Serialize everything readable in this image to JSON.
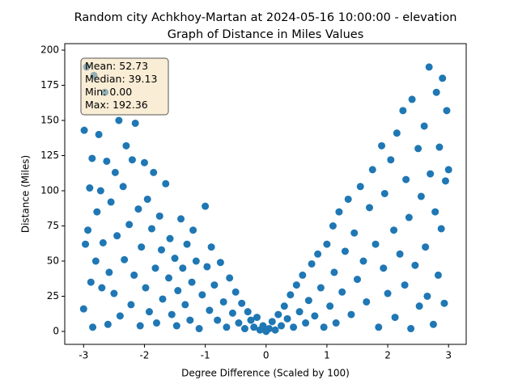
{
  "chart_data": {
    "type": "scatter",
    "title": "Random city Achkhoy-Martan at 2024-05-16 10:00:00  - elevation",
    "subtitle": "Graph of Distance in Miles Values",
    "x_label": "Degree Difference (Scaled by 100)",
    "y_label": "Distance (Miles)",
    "annotation": [
      "Mean: 52.73",
      "Median: 39.13",
      "Min: 0.00",
      "Max: 192.36"
    ],
    "xlim": [
      -3.31,
      3.29
    ],
    "ylim": [
      -9.2,
      204.6
    ],
    "xticks": [
      -3,
      -2,
      -1,
      0,
      1,
      2,
      3
    ],
    "yticks": [
      0,
      25,
      50,
      75,
      100,
      125,
      150,
      175,
      200
    ],
    "series": [
      {
        "color": "#1f77b4",
        "x": [
          -3,
          -2.99,
          -2.97,
          -2.95,
          -2.93,
          -2.9,
          -2.88,
          -2.86,
          -2.85,
          -2.83,
          -2.8,
          -2.78,
          -2.75,
          -2.72,
          -2.7,
          -2.68,
          -2.65,
          -2.62,
          -2.6,
          -2.58,
          -2.55,
          -2.5,
          -2.48,
          -2.45,
          -2.42,
          -2.4,
          -2.35,
          -2.33,
          -2.3,
          -2.25,
          -2.22,
          -2.2,
          -2.17,
          -2.15,
          -2.1,
          -2.07,
          -2.05,
          -2.0,
          -1.98,
          -1.95,
          -1.92,
          -1.88,
          -1.85,
          -1.82,
          -1.8,
          -1.75,
          -1.72,
          -1.7,
          -1.65,
          -1.6,
          -1.58,
          -1.55,
          -1.5,
          -1.47,
          -1.45,
          -1.4,
          -1.37,
          -1.33,
          -1.3,
          -1.25,
          -1.22,
          -1.2,
          -1.15,
          -1.1,
          -1.05,
          -1.0,
          -0.97,
          -0.93,
          -0.9,
          -0.85,
          -0.8,
          -0.75,
          -0.7,
          -0.65,
          -0.6,
          -0.55,
          -0.5,
          -0.45,
          -0.4,
          -0.35,
          -0.3,
          -0.25,
          -0.2,
          -0.15,
          -0.1,
          -0.05,
          0,
          0.05,
          0.1,
          0.15,
          0.2,
          0.25,
          0.3,
          0.35,
          0.4,
          0.45,
          0.5,
          0.55,
          0.6,
          0.65,
          0.7,
          0.75,
          0.8,
          0.85,
          0.9,
          0.95,
          1.0,
          1.05,
          1.1,
          1.12,
          1.15,
          1.2,
          1.25,
          1.3,
          1.35,
          1.4,
          1.45,
          1.5,
          1.55,
          1.6,
          1.65,
          1.7,
          1.75,
          1.8,
          1.85,
          1.9,
          1.93,
          1.95,
          2.0,
          2.05,
          2.1,
          2.12,
          2.15,
          2.2,
          2.25,
          2.28,
          2.3,
          2.35,
          2.38,
          2.4,
          2.45,
          2.5,
          2.52,
          2.55,
          2.6,
          2.62,
          2.65,
          2.68,
          2.7,
          2.75,
          2.78,
          2.8,
          2.83,
          2.85,
          2.88,
          2.9,
          2.93,
          2.95,
          2.97,
          3.0
        ],
        "values": [
          16,
          143,
          62,
          188,
          72,
          102,
          35,
          123,
          3,
          182,
          50,
          85,
          140,
          100,
          31,
          63,
          170,
          121,
          5,
          42,
          92,
          27,
          113,
          68,
          150,
          11,
          103,
          51,
          132,
          76,
          19,
          122,
          40,
          148,
          87,
          4,
          60,
          120,
          31,
          94,
          14,
          73,
          113,
          45,
          6,
          82,
          58,
          23,
          105,
          38,
          66,
          12,
          52,
          4,
          29,
          80,
          45,
          19,
          62,
          8,
          35,
          72,
          50,
          2,
          26,
          89,
          46,
          15,
          60,
          33,
          8,
          49,
          21,
          3,
          38,
          13,
          28,
          6,
          20,
          2,
          14,
          8,
          3,
          10,
          1,
          4,
          0,
          2,
          7,
          1,
          12,
          4,
          18,
          9,
          26,
          3,
          33,
          14,
          40,
          6,
          22,
          48,
          11,
          55,
          31,
          3,
          62,
          18,
          75,
          42,
          6,
          85,
          28,
          57,
          94,
          12,
          70,
          37,
          103,
          50,
          21,
          88,
          115,
          62,
          3,
          132,
          45,
          98,
          27,
          122,
          72,
          10,
          141,
          55,
          157,
          33,
          108,
          81,
          2,
          165,
          47,
          130,
          18,
          96,
          146,
          60,
          25,
          188,
          112,
          5,
          85,
          170,
          40,
          131,
          73,
          180,
          20,
          107,
          157,
          115
        ]
      }
    ]
  }
}
